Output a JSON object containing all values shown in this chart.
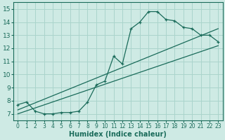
{
  "xlabel": "Humidex (Indice chaleur)",
  "ylabel": "",
  "bg_color": "#ceeae4",
  "grid_color": "#aad4cc",
  "line_color": "#1a6b5a",
  "xlim": [
    -0.5,
    23.5
  ],
  "ylim": [
    6.5,
    15.5
  ],
  "xticks": [
    0,
    1,
    2,
    3,
    4,
    5,
    6,
    7,
    8,
    9,
    10,
    11,
    12,
    13,
    14,
    15,
    16,
    17,
    18,
    19,
    20,
    21,
    22,
    23
  ],
  "yticks": [
    7,
    8,
    9,
    10,
    11,
    12,
    13,
    14,
    15
  ],
  "data_x": [
    0,
    1,
    2,
    3,
    4,
    5,
    6,
    7,
    8,
    9,
    10,
    11,
    12,
    13,
    14,
    15,
    16,
    17,
    18,
    19,
    20,
    21,
    22,
    23
  ],
  "data_y": [
    7.7,
    7.9,
    7.2,
    7.0,
    7.0,
    7.1,
    7.1,
    7.2,
    7.9,
    9.2,
    9.5,
    11.4,
    10.8,
    13.5,
    14.0,
    14.8,
    14.8,
    14.2,
    14.1,
    13.6,
    13.5,
    13.0,
    13.0,
    12.5
  ],
  "trend1_x": [
    0,
    23
  ],
  "trend1_y": [
    7.0,
    12.2
  ],
  "trend2_x": [
    0,
    23
  ],
  "trend2_y": [
    7.3,
    13.5
  ]
}
